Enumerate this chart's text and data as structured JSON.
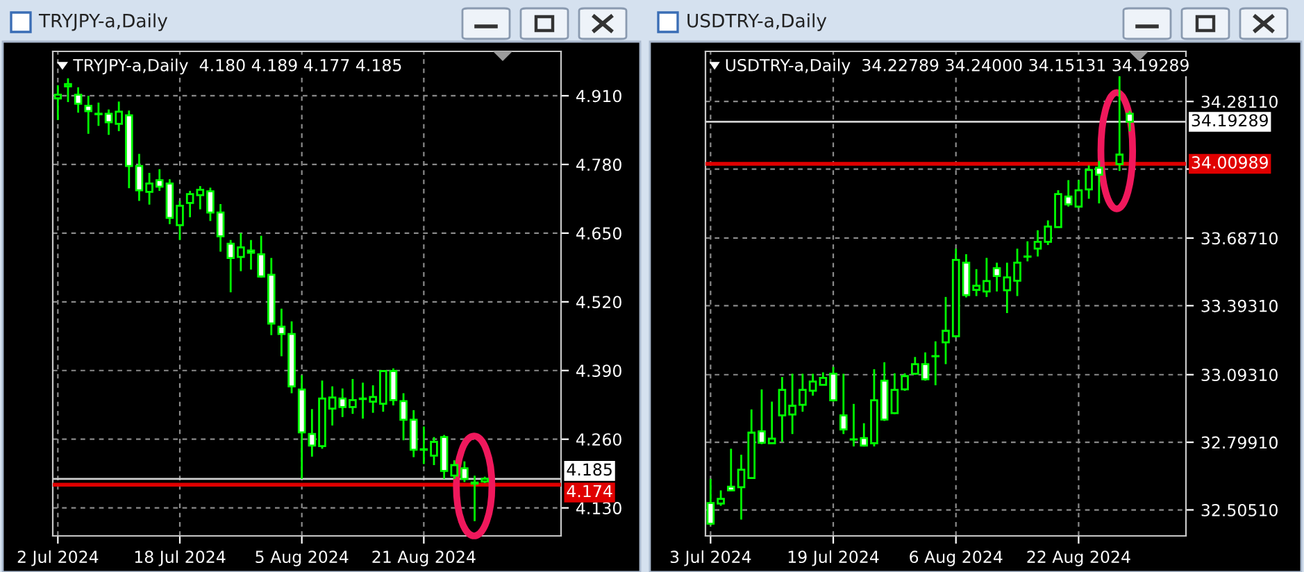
{
  "chart_data": [
    {
      "type": "candlestick",
      "title": "TRYJPY-a,Daily",
      "subtitle": "TRYJPY-a,Daily  4.180 4.189 4.177 4.185",
      "color": "#00ff00",
      "categories": [
        "2 Jul 2024",
        null,
        null,
        null,
        null,
        null,
        null,
        null,
        null,
        null,
        null,
        null,
        "18 Jul 2024",
        null,
        null,
        null,
        null,
        null,
        null,
        null,
        null,
        null,
        null,
        null,
        "5 Aug 2024",
        null,
        null,
        null,
        null,
        null,
        null,
        null,
        null,
        null,
        null,
        null,
        "21 Aug 2024",
        null,
        null,
        null,
        null,
        null,
        null,
        null,
        null,
        null,
        null,
        null,
        null,
        null
      ],
      "ohlc": [
        [
          4.905,
          4.93,
          4.864,
          4.912
        ],
        [
          4.928,
          4.943,
          4.898,
          4.932
        ],
        [
          4.912,
          4.926,
          4.878,
          4.895
        ],
        [
          4.891,
          4.91,
          4.838,
          4.881
        ],
        [
          4.876,
          4.897,
          4.853,
          4.875
        ],
        [
          4.876,
          4.884,
          4.836,
          4.86
        ],
        [
          4.857,
          4.899,
          4.843,
          4.88
        ],
        [
          4.873,
          4.882,
          4.735,
          4.777
        ],
        [
          4.777,
          4.8,
          4.711,
          4.731
        ],
        [
          4.728,
          4.764,
          4.704,
          4.744
        ],
        [
          4.75,
          4.771,
          4.73,
          4.738
        ],
        [
          4.744,
          4.752,
          4.667,
          4.679
        ],
        [
          4.665,
          4.711,
          4.637,
          4.702
        ],
        [
          4.707,
          4.73,
          4.68,
          4.724
        ],
        [
          4.722,
          4.739,
          4.695,
          4.732
        ],
        [
          4.729,
          4.736,
          4.673,
          4.689
        ],
        [
          4.689,
          4.705,
          4.615,
          4.644
        ],
        [
          4.63,
          4.637,
          4.538,
          4.603
        ],
        [
          4.605,
          4.65,
          4.578,
          4.623
        ],
        [
          4.617,
          4.637,
          4.581,
          4.613
        ],
        [
          4.61,
          4.645,
          4.566,
          4.568
        ],
        [
          4.571,
          4.603,
          4.457,
          4.479
        ],
        [
          4.473,
          4.507,
          4.417,
          4.459
        ],
        [
          4.459,
          4.483,
          4.347,
          4.36
        ],
        [
          4.354,
          4.381,
          4.185,
          4.273
        ],
        [
          4.27,
          4.317,
          4.227,
          4.248
        ],
        [
          4.247,
          4.371,
          4.242,
          4.337
        ],
        [
          4.318,
          4.36,
          4.286,
          4.339
        ],
        [
          4.337,
          4.356,
          4.302,
          4.321
        ],
        [
          4.321,
          4.374,
          4.308,
          4.334
        ],
        [
          4.336,
          4.367,
          4.299,
          4.337
        ],
        [
          4.331,
          4.362,
          4.31,
          4.34
        ],
        [
          4.327,
          4.391,
          4.312,
          4.389
        ],
        [
          4.389,
          4.394,
          4.324,
          4.334
        ],
        [
          4.332,
          4.347,
          4.258,
          4.297
        ],
        [
          4.297,
          4.315,
          4.226,
          4.24
        ],
        [
          4.24,
          4.284,
          4.213,
          4.241
        ],
        [
          4.229,
          4.264,
          4.211,
          4.255
        ],
        [
          4.264,
          4.268,
          4.185,
          4.2
        ],
        [
          4.191,
          4.22,
          4.185,
          4.211
        ],
        [
          4.205,
          4.218,
          4.179,
          4.185
        ],
        [
          4.178,
          4.191,
          4.105,
          4.176
        ],
        [
          4.18,
          4.189,
          4.177,
          4.185
        ],
        null,
        null,
        null,
        null,
        null,
        null,
        null
      ],
      "colors": [
        "#000000",
        "#000000",
        "#ffffff",
        "#ffffff",
        "#ffffff",
        "#ffffff",
        "#000000",
        "#ffffff",
        "#ffffff",
        "#000000",
        "#ffffff",
        "#ffffff",
        "#000000",
        "#000000",
        "#000000",
        "#ffffff",
        "#ffffff",
        "#ffffff",
        "#000000",
        "#ffffff",
        "#ffffff",
        "#ffffff",
        "#ffffff",
        "#ffffff",
        "#ffffff",
        "#ffffff",
        "#000000",
        "#000000",
        "#ffffff",
        "#000000",
        "#000000",
        "#000000",
        "#000000",
        "#ffffff",
        "#ffffff",
        "#ffffff",
        "#000000",
        "#000000",
        "#ffffff",
        "#000000",
        "#ffffff",
        "#ffffff",
        "#000000",
        null,
        null,
        null,
        null,
        null,
        null,
        null
      ],
      "ylim": [
        4.077,
        4.994
      ],
      "yticks": [
        {
          "value": 4.91,
          "label": "4.910"
        },
        {
          "value": 4.78,
          "label": "4.780"
        },
        {
          "value": 4.65,
          "label": "4.650"
        },
        {
          "value": 4.52,
          "label": "4.520"
        },
        {
          "value": 4.39,
          "label": "4.390"
        },
        {
          "value": 4.26,
          "label": "4.260"
        },
        {
          "value": 4.13,
          "label": "4.130"
        }
      ],
      "ref_lines": [
        {
          "axis": "y",
          "value": 4.185,
          "label": "4.185",
          "color": "#d0d0d0"
        },
        {
          "axis": "y",
          "value": 4.174,
          "label": "4.174",
          "color": "#e00000"
        }
      ],
      "grid": true
    },
    {
      "type": "candlestick",
      "title": "USDTRY-a,Daily",
      "subtitle": "USDTRY-a,Daily  34.22789 34.24000 34.15131 34.19289",
      "color": "#00ff00",
      "categories": [
        "3 Jul 2024",
        null,
        null,
        null,
        null,
        null,
        null,
        null,
        null,
        null,
        null,
        null,
        "19 Jul 2024",
        null,
        null,
        null,
        null,
        null,
        null,
        null,
        null,
        null,
        null,
        null,
        "6 Aug 2024",
        null,
        null,
        null,
        null,
        null,
        null,
        null,
        null,
        null,
        null,
        null,
        "22 Aug 2024",
        null,
        null,
        null,
        null,
        null,
        null,
        null,
        null,
        null,
        null
      ],
      "ohlc": [
        [
          32.535,
          32.64,
          32.439,
          32.445
        ],
        [
          32.533,
          32.59,
          32.523,
          32.553
        ],
        [
          32.606,
          32.771,
          32.588,
          32.59
        ],
        [
          32.604,
          32.745,
          32.463,
          32.68
        ],
        [
          32.644,
          32.942,
          32.64,
          32.841
        ],
        [
          32.847,
          33.029,
          32.791,
          32.797
        ],
        [
          32.795,
          32.976,
          32.791,
          32.815
        ],
        [
          32.916,
          33.083,
          32.801,
          33.027
        ],
        [
          32.92,
          33.097,
          32.835,
          32.958
        ],
        [
          32.962,
          33.097,
          32.932,
          33.027
        ],
        [
          33.023,
          33.097,
          33.002,
          33.063
        ],
        [
          33.049,
          33.103,
          33.047,
          33.079
        ],
        [
          33.097,
          33.127,
          32.976,
          32.982
        ],
        [
          32.916,
          33.097,
          32.835,
          32.855
        ],
        [
          32.811,
          32.966,
          32.781,
          32.812
        ],
        [
          32.817,
          32.882,
          32.781,
          32.785
        ],
        [
          32.795,
          33.117,
          32.781,
          32.982
        ],
        [
          33.067,
          33.147,
          32.892,
          32.898
        ],
        [
          32.926,
          33.099,
          32.922,
          33.027
        ],
        [
          33.029,
          33.099,
          33.023,
          33.087
        ],
        [
          33.097,
          33.17,
          33.093,
          33.139
        ],
        [
          33.139,
          33.19,
          33.067,
          33.073
        ],
        [
          33.173,
          33.238,
          33.047,
          33.174
        ],
        [
          33.234,
          33.431,
          33.139,
          33.284
        ],
        [
          33.26,
          33.641,
          33.254,
          33.592
        ],
        [
          33.58,
          33.617,
          33.429,
          33.439
        ],
        [
          33.462,
          33.552,
          33.435,
          33.48
        ],
        [
          33.455,
          33.601,
          33.431,
          33.5
        ],
        [
          33.556,
          33.58,
          33.455,
          33.522
        ],
        [
          33.46,
          33.58,
          33.361,
          33.516
        ],
        [
          33.502,
          33.641,
          33.435,
          33.58
        ],
        [
          33.606,
          33.673,
          33.586,
          33.607
        ],
        [
          33.641,
          33.721,
          33.607,
          33.671
        ],
        [
          33.671,
          33.764,
          33.657,
          33.737
        ],
        [
          33.735,
          33.895,
          33.733,
          33.878
        ],
        [
          33.868,
          33.939,
          33.824,
          33.834
        ],
        [
          33.824,
          33.939,
          33.818,
          33.895
        ],
        [
          33.899,
          34.003,
          33.858,
          33.983
        ],
        [
          33.993,
          34.023,
          33.838,
          33.963
        ],
        null,
        [
          34.009,
          34.392,
          33.979,
          34.05
        ],
        [
          34.22789,
          34.24,
          34.15131,
          34.19289
        ],
        null,
        null,
        null,
        null,
        null
      ],
      "colors": [
        "#ffffff",
        "#000000",
        "#ffffff",
        "#000000",
        "#000000",
        "#ffffff",
        "#000000",
        "#000000",
        "#000000",
        "#000000",
        "#000000",
        "#000000",
        "#ffffff",
        "#ffffff",
        "#000000",
        "#ffffff",
        "#000000",
        "#ffffff",
        "#000000",
        "#000000",
        "#000000",
        "#ffffff",
        "#000000",
        "#000000",
        "#000000",
        "#ffffff",
        "#000000",
        "#000000",
        "#ffffff",
        "#000000",
        "#000000",
        "#000000",
        "#000000",
        "#000000",
        "#000000",
        "#ffffff",
        "#000000",
        "#000000",
        "#ffffff",
        null,
        "#000000",
        "#ffffff",
        null,
        null,
        null,
        null,
        null
      ],
      "ylim": [
        32.392,
        34.499
      ],
      "yticks": [
        {
          "value": 34.2811,
          "label": "34.28110"
        },
        {
          "value": 33.9871,
          "label": null
        },
        {
          "value": 33.6871,
          "label": "33.68710"
        },
        {
          "value": 33.3931,
          "label": "33.39310"
        },
        {
          "value": 33.0931,
          "label": "33.09310"
        },
        {
          "value": 32.7991,
          "label": "32.79910"
        },
        {
          "value": 32.5051,
          "label": "32.50510"
        }
      ],
      "ref_lines": [
        {
          "axis": "y",
          "value": 34.19289,
          "label": "34.19289",
          "color": "#d0d0d0"
        },
        {
          "axis": "y",
          "value": 34.00989,
          "label": "34.00989",
          "color": "#e00000"
        }
      ],
      "grid": true
    }
  ]
}
